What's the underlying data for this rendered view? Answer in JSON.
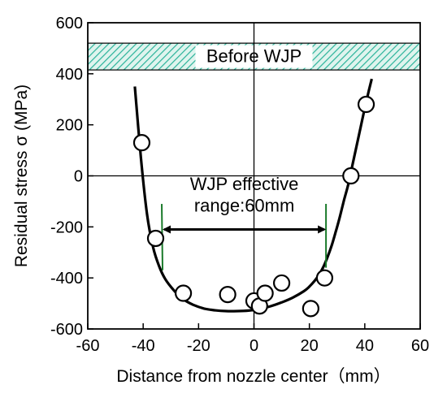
{
  "chart_data": {
    "type": "scatter",
    "xlabel": "Distance from nozzle center（mm）",
    "ylabel": "Residual stress  σ (MPa)",
    "xlim": [
      -60,
      60
    ],
    "ylim": [
      -600,
      600
    ],
    "x_ticks": [
      -60,
      -40,
      -20,
      0,
      20,
      40,
      60
    ],
    "y_ticks": [
      -600,
      -400,
      -200,
      0,
      200,
      400,
      600
    ],
    "x_tick_labels": [
      "-60",
      "-40",
      "-20",
      "0",
      "20",
      "40",
      "60"
    ],
    "y_tick_labels": [
      "-600",
      "-400",
      "-200",
      "0",
      "200",
      "400",
      "600"
    ],
    "grid": false,
    "reference_band": {
      "label": "Before WJP",
      "y_range": [
        415,
        520
      ],
      "pattern": "hatched",
      "color": "#2bb39a"
    },
    "measured_points": {
      "x": [
        -40.5,
        -35.5,
        -25.5,
        -9.5,
        0,
        2,
        4,
        10,
        20.5,
        25.5,
        35,
        40.5
      ],
      "y": [
        130,
        -245,
        -460,
        -465,
        -490,
        -510,
        -460,
        -420,
        -520,
        -400,
        0,
        280
      ]
    },
    "fit_curve": {
      "x": [
        -43,
        -40.8,
        -38.6,
        -36.4,
        -34.2,
        -32,
        -29,
        -26,
        -22,
        -18,
        -14,
        -10,
        -6,
        -2,
        2,
        6,
        10,
        14,
        18,
        20,
        22,
        23.5,
        25,
        26.5,
        28,
        29.5,
        31,
        32.5,
        34,
        35.5,
        37,
        38.5,
        40,
        41.5,
        42.5
      ],
      "y": [
        350,
        70,
        -150,
        -280,
        -355,
        -405,
        -448,
        -480,
        -505,
        -520,
        -527,
        -530,
        -530,
        -528,
        -522,
        -511,
        -496,
        -477,
        -452,
        -434,
        -410,
        -387,
        -358,
        -320,
        -275,
        -220,
        -160,
        -95,
        -35,
        40,
        115,
        190,
        265,
        335,
        380
      ]
    },
    "effective_range": {
      "label_line1": "WJP effective",
      "label_line2": "range:60mm",
      "x_start": -33,
      "x_end": 26,
      "arrow_y": -210,
      "marker_color": "#1a7a2a"
    }
  }
}
